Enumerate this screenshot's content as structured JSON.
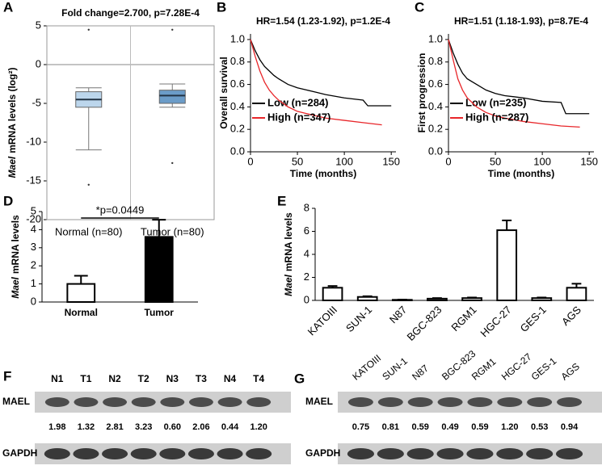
{
  "chart_data": [
    {
      "type": "box",
      "panel": "A",
      "title": "Fold change=2.700, p=7.28E-4",
      "ylabel_italic": "Mael",
      "ylabel": "mRNA levels (log²)",
      "categories": [
        "Normal (n=80)",
        "Tumor (n=80)"
      ],
      "colors": [
        "#bcd6ec",
        "#6b9cc8"
      ],
      "boxes": [
        {
          "low": -11,
          "q1": -5.5,
          "median": -4.5,
          "q3": -3.5,
          "high": -3,
          "outliers": [
            4.5,
            -15.5
          ]
        },
        {
          "low": -5.5,
          "q1": -5,
          "median": -4,
          "q3": -3.3,
          "high": -2.5,
          "outliers": [
            4.5,
            -12.7
          ]
        }
      ],
      "reference_line": 0,
      "ylim": [
        -20,
        5
      ],
      "yticks": [
        5,
        0,
        -5,
        -10,
        -15,
        -20
      ]
    },
    {
      "type": "km",
      "panel": "B",
      "title": "HR=1.54 (1.23-1.92), p=1.2E-4",
      "ylabel": "Overall survival",
      "xlabel": "Time (months)",
      "xlim": [
        0,
        155
      ],
      "xticks": [
        0,
        50,
        100,
        150
      ],
      "ylim": [
        0,
        1.05
      ],
      "yticks": [
        {
          "value": 0,
          "label": "0.0"
        },
        0.2,
        0.4,
        0.6,
        0.8,
        {
          "value": 1,
          "label": "1.0"
        }
      ],
      "series": [
        {
          "name": "Low (n=284)",
          "color": "#000000",
          "x": [
            0,
            5,
            10,
            15,
            20,
            25,
            30,
            40,
            50,
            60,
            70,
            80,
            100,
            120,
            125,
            150
          ],
          "values": [
            1,
            0.9,
            0.82,
            0.76,
            0.72,
            0.68,
            0.65,
            0.6,
            0.57,
            0.55,
            0.53,
            0.51,
            0.48,
            0.46,
            0.41,
            0.41
          ]
        },
        {
          "name": "High (n=347)",
          "color": "#e8262a",
          "x": [
            0,
            5,
            10,
            15,
            20,
            25,
            30,
            40,
            50,
            60,
            70,
            80,
            100,
            120,
            140
          ],
          "values": [
            1,
            0.85,
            0.72,
            0.62,
            0.55,
            0.5,
            0.46,
            0.4,
            0.36,
            0.34,
            0.32,
            0.3,
            0.28,
            0.26,
            0.24
          ]
        }
      ]
    },
    {
      "type": "km",
      "panel": "C",
      "title": "HR=1.51 (1.18-1.93), p=8.7E-4",
      "ylabel": "First progression",
      "xlabel": "Time (months)",
      "xlim": [
        0,
        155
      ],
      "xticks": [
        0,
        50,
        100,
        150
      ],
      "ylim": [
        0,
        1.05
      ],
      "yticks": [
        {
          "value": 0,
          "label": "0.0"
        },
        0.2,
        0.4,
        0.6,
        0.8,
        {
          "value": 1,
          "label": "1.0"
        }
      ],
      "series": [
        {
          "name": "Low (n=235)",
          "color": "#000000",
          "x": [
            0,
            5,
            10,
            15,
            20,
            30,
            40,
            50,
            60,
            80,
            100,
            120,
            125,
            150
          ],
          "values": [
            1,
            0.88,
            0.78,
            0.7,
            0.65,
            0.6,
            0.55,
            0.52,
            0.5,
            0.48,
            0.45,
            0.44,
            0.34,
            0.34
          ]
        },
        {
          "name": "High (n=287)",
          "color": "#e8262a",
          "x": [
            0,
            5,
            10,
            15,
            20,
            30,
            40,
            50,
            60,
            80,
            100,
            120,
            140
          ],
          "values": [
            1,
            0.82,
            0.65,
            0.55,
            0.48,
            0.4,
            0.35,
            0.32,
            0.3,
            0.27,
            0.25,
            0.23,
            0.22
          ]
        }
      ]
    },
    {
      "type": "bar",
      "panel": "D",
      "ylabel_italic": "Mael",
      "ylabel": "mRNA levels",
      "annotation": "*p=0.0449",
      "categories": [
        "Normal",
        "Tumor"
      ],
      "values": [
        1,
        3.6
      ],
      "errors": [
        0.45,
        0.95
      ],
      "colors": [
        "#ffffff",
        "#000000"
      ],
      "ylim": [
        0,
        5
      ],
      "yticks": [
        0,
        1,
        2,
        3,
        4,
        5
      ]
    },
    {
      "type": "bar",
      "panel": "E",
      "ylabel_italic": "Mael",
      "ylabel": "mRNA levels",
      "categories": [
        "KATOIII",
        "SUN-1",
        "N87",
        "BGC-823",
        "RGM1",
        "HGC-27",
        "GES-1",
        "AGS"
      ],
      "values": [
        1.1,
        0.3,
        0.05,
        0.15,
        0.2,
        6.1,
        0.2,
        1.1
      ],
      "errors": [
        0.15,
        0.06,
        0.02,
        0.05,
        0.05,
        0.85,
        0.05,
        0.35
      ],
      "colors": [
        "#ffffff",
        "#ffffff",
        "#ffffff",
        "#ffffff",
        "#ffffff",
        "#ffffff",
        "#ffffff",
        "#ffffff"
      ],
      "ylim": [
        0,
        8
      ],
      "yticks": [
        0,
        2,
        4,
        6,
        8
      ]
    },
    {
      "type": "blot",
      "panel": "F",
      "lanes": [
        "N1",
        "T1",
        "N2",
        "T2",
        "N3",
        "T3",
        "N4",
        "T4"
      ],
      "rows": [
        "MAEL",
        "GAPDH"
      ],
      "ratios": [
        "1.98",
        "1.32",
        "2.81",
        "3.23",
        "0.60",
        "2.06",
        "0.44",
        "1.20"
      ]
    },
    {
      "type": "blot",
      "panel": "G",
      "lanes": [
        "KATOIII",
        "SUN-1",
        "N87",
        "BGC-823",
        "RGM1",
        "HGC-27",
        "GES-1",
        "AGS"
      ],
      "rows": [
        "MAEL",
        "GAPDH"
      ],
      "ratios": [
        "0.75",
        "0.81",
        "0.59",
        "0.49",
        "0.59",
        "1.20",
        "0.53",
        "0.94"
      ]
    }
  ]
}
